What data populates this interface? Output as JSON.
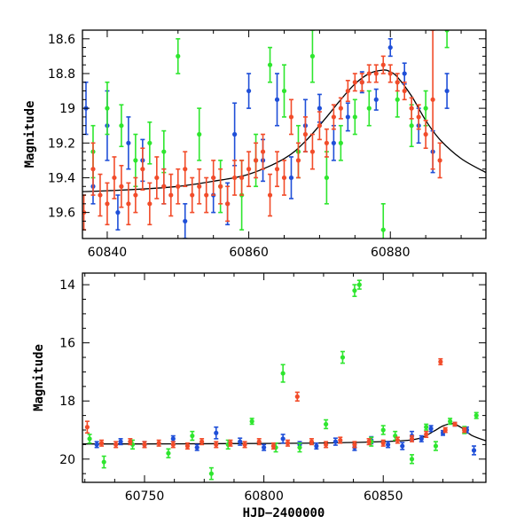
{
  "chart_data": [
    {
      "type": "scatter",
      "panel": "top",
      "xlabel": "",
      "ylabel": "Magnitude",
      "xlim": [
        60836.5,
        60893.5
      ],
      "ylim": [
        19.75,
        18.55
      ],
      "y_inverted": true,
      "xticks": [
        60840,
        60860,
        60880
      ],
      "xtick_labels": [
        "60840",
        "60860",
        "60880"
      ],
      "yticks": [
        18.6,
        18.8,
        19.0,
        19.2,
        19.4,
        19.6
      ],
      "ytick_labels": [
        "18.6",
        "18.8",
        "19",
        "19.2",
        "19.4",
        "19.6"
      ],
      "grid": false,
      "model_curve": {
        "color": "#000000",
        "x": [
          60836.5,
          60840,
          60845,
          60850,
          60855,
          60860,
          60865,
          60868,
          60871,
          60873,
          60875,
          60877,
          60879,
          60880,
          60881,
          60883,
          60885,
          60887,
          60890,
          60893.5
        ],
        "y": [
          19.48,
          19.475,
          19.465,
          19.45,
          19.42,
          19.38,
          19.29,
          19.19,
          19.05,
          18.95,
          18.86,
          18.8,
          18.78,
          18.79,
          18.82,
          18.93,
          19.07,
          19.18,
          19.29,
          19.37
        ]
      },
      "series": [
        {
          "color": "#1f4fd8",
          "x": [
            60837,
            60838,
            60840,
            60841.5,
            60843,
            60845,
            60848,
            60851,
            60855,
            60857,
            60858,
            60860,
            60862,
            60864,
            60866,
            60868,
            60870,
            60872,
            60874,
            60876,
            60878,
            60880,
            60882,
            60884,
            60886,
            60888
          ],
          "y": [
            19.0,
            19.45,
            19.1,
            19.6,
            19.2,
            19.3,
            19.45,
            19.65,
            19.5,
            19.55,
            19.15,
            18.9,
            19.3,
            18.95,
            19.4,
            19.1,
            19.0,
            19.2,
            19.05,
            18.85,
            18.95,
            18.65,
            18.8,
            19.1,
            19.25,
            18.9
          ],
          "err": [
            0.15,
            0.1,
            0.2,
            0.1,
            0.15,
            0.12,
            0.1,
            0.1,
            0.1,
            0.12,
            0.18,
            0.1,
            0.12,
            0.15,
            0.12,
            0.15,
            0.08,
            0.1,
            0.08,
            0.06,
            0.06,
            0.05,
            0.06,
            0.1,
            0.12,
            0.1
          ]
        },
        {
          "color": "#2ee62e",
          "x": [
            60838,
            60840,
            60842,
            60844,
            60846,
            60848,
            60850,
            60853,
            60856,
            60859,
            60861,
            60863,
            60865,
            60867,
            60869,
            60871,
            60873,
            60875,
            60877,
            60879,
            60881,
            60883,
            60885,
            60888
          ],
          "y": [
            19.25,
            19.0,
            19.1,
            19.3,
            19.2,
            19.25,
            18.7,
            19.15,
            19.45,
            19.5,
            19.3,
            18.75,
            18.9,
            19.25,
            18.7,
            19.4,
            19.2,
            19.05,
            19.0,
            19.7,
            18.95,
            19.1,
            19.0,
            18.55
          ],
          "err": [
            0.15,
            0.15,
            0.12,
            0.15,
            0.12,
            0.12,
            0.1,
            0.15,
            0.15,
            0.2,
            0.15,
            0.1,
            0.15,
            0.15,
            0.15,
            0.15,
            0.1,
            0.1,
            0.1,
            0.15,
            0.1,
            0.12,
            0.1,
            0.1
          ]
        },
        {
          "color": "#f24c2a",
          "x": [
            60836.7,
            60838,
            60839,
            60840,
            60841,
            60842,
            60843,
            60844,
            60845,
            60846,
            60847,
            60848,
            60849,
            60850,
            60851,
            60852,
            60853,
            60854,
            60855,
            60856,
            60857,
            60858,
            60859,
            60860,
            60861,
            60862,
            60863,
            60864,
            60865,
            60866,
            60867,
            60868,
            60869,
            60870,
            60871,
            60872,
            60873,
            60874,
            60875,
            60876,
            60877,
            60878,
            60879,
            60880,
            60881,
            60882,
            60883,
            60884,
            60885,
            60886,
            60887
          ],
          "y": [
            19.6,
            19.35,
            19.5,
            19.55,
            19.4,
            19.45,
            19.55,
            19.5,
            19.35,
            19.55,
            19.4,
            19.45,
            19.5,
            19.45,
            19.35,
            19.5,
            19.45,
            19.5,
            19.4,
            19.45,
            19.55,
            19.4,
            19.4,
            19.35,
            19.3,
            19.25,
            19.5,
            19.35,
            19.4,
            19.05,
            19.3,
            19.15,
            19.25,
            19.1,
            19.2,
            19.05,
            19.0,
            18.9,
            18.85,
            18.85,
            18.8,
            18.8,
            18.75,
            18.8,
            18.85,
            18.9,
            19.0,
            19.05,
            19.15,
            18.95,
            19.3
          ],
          "err": [
            0.1,
            0.15,
            0.12,
            0.12,
            0.12,
            0.12,
            0.12,
            0.1,
            0.12,
            0.12,
            0.12,
            0.1,
            0.12,
            0.1,
            0.1,
            0.1,
            0.1,
            0.1,
            0.1,
            0.1,
            0.1,
            0.1,
            0.1,
            0.1,
            0.1,
            0.1,
            0.12,
            0.1,
            0.1,
            0.1,
            0.1,
            0.1,
            0.1,
            0.08,
            0.08,
            0.07,
            0.06,
            0.06,
            0.05,
            0.05,
            0.05,
            0.05,
            0.05,
            0.05,
            0.05,
            0.05,
            0.06,
            0.07,
            0.08,
            0.4,
            0.1
          ]
        }
      ]
    },
    {
      "type": "scatter",
      "panel": "bottom",
      "xlabel": "HJD−2400000",
      "ylabel": "Magnitude",
      "xlim": [
        60724,
        60893
      ],
      "ylim": [
        20.8,
        13.6
      ],
      "y_inverted": true,
      "xticks": [
        60750,
        60800,
        60850
      ],
      "xtick_labels": [
        "60750",
        "60800",
        "60850"
      ],
      "yticks": [
        14,
        16,
        18,
        20
      ],
      "ytick_labels": [
        "14",
        "16",
        "18",
        "20"
      ],
      "grid": false,
      "model_curve": {
        "color": "#000000",
        "x": [
          60724,
          60760,
          60800,
          60830,
          60855,
          60865,
          60871,
          60875,
          60879,
          60883,
          60887,
          60893
        ],
        "y": [
          19.48,
          19.475,
          19.46,
          19.44,
          19.38,
          19.29,
          19.05,
          18.86,
          18.78,
          18.93,
          19.18,
          19.37
        ]
      },
      "series": [
        {
          "color": "#1f4fd8",
          "x": [
            60730,
            60740,
            60750,
            60762,
            60772,
            60780,
            60790,
            60800,
            60808,
            60815,
            60822,
            60830,
            60838,
            60845,
            60852,
            60858,
            60862,
            60866,
            60870,
            60875,
            60880,
            60885,
            60888
          ],
          "y": [
            19.5,
            19.4,
            19.5,
            19.3,
            19.6,
            19.1,
            19.4,
            19.6,
            19.3,
            19.5,
            19.55,
            19.4,
            19.6,
            19.35,
            19.5,
            19.55,
            19.2,
            19.3,
            18.95,
            19.1,
            18.8,
            19.0,
            19.7
          ],
          "err": [
            0.1,
            0.1,
            0.1,
            0.1,
            0.1,
            0.2,
            0.12,
            0.1,
            0.15,
            0.1,
            0.1,
            0.12,
            0.1,
            0.12,
            0.1,
            0.12,
            0.15,
            0.1,
            0.1,
            0.08,
            0.06,
            0.1,
            0.15
          ]
        },
        {
          "color": "#2ee62e",
          "x": [
            60727,
            60733,
            60745,
            60760,
            60770,
            60778,
            60785,
            60795,
            60805,
            60808,
            60815,
            60826,
            60833,
            60838,
            60840,
            60845,
            60850,
            60855,
            60862,
            60868,
            60872,
            60878,
            60884,
            60889
          ],
          "y": [
            19.3,
            20.1,
            19.5,
            19.8,
            19.2,
            20.5,
            19.5,
            18.7,
            19.6,
            17.05,
            19.6,
            18.8,
            16.5,
            14.2,
            14.0,
            19.4,
            19.0,
            19.2,
            20.0,
            18.9,
            19.55,
            18.7,
            19.0,
            18.5
          ],
          "err": [
            0.15,
            0.2,
            0.15,
            0.15,
            0.15,
            0.2,
            0.15,
            0.1,
            0.15,
            0.3,
            0.15,
            0.15,
            0.2,
            0.2,
            0.15,
            0.15,
            0.15,
            0.15,
            0.15,
            0.1,
            0.15,
            0.1,
            0.12,
            0.1
          ]
        },
        {
          "color": "#f24c2a",
          "x": [
            60726,
            60732,
            60738,
            60744,
            60750,
            60756,
            60762,
            60768,
            60774,
            60780,
            60786,
            60792,
            60798,
            60804,
            60810,
            60814,
            60820,
            60826,
            60832,
            60838,
            60844,
            60850,
            60856,
            60862,
            60868,
            60874,
            60876,
            60880,
            60884
          ],
          "y": [
            18.9,
            19.45,
            19.5,
            19.4,
            19.5,
            19.45,
            19.5,
            19.55,
            19.4,
            19.5,
            19.45,
            19.5,
            19.4,
            19.55,
            19.45,
            17.85,
            19.4,
            19.5,
            19.35,
            19.5,
            19.4,
            19.45,
            19.35,
            19.3,
            19.15,
            16.65,
            19.0,
            18.8,
            19.0
          ],
          "err": [
            0.2,
            0.1,
            0.1,
            0.1,
            0.1,
            0.1,
            0.1,
            0.1,
            0.1,
            0.1,
            0.1,
            0.1,
            0.1,
            0.1,
            0.1,
            0.15,
            0.1,
            0.1,
            0.1,
            0.1,
            0.1,
            0.1,
            0.1,
            0.1,
            0.1,
            0.1,
            0.08,
            0.06,
            0.08
          ]
        }
      ]
    }
  ]
}
